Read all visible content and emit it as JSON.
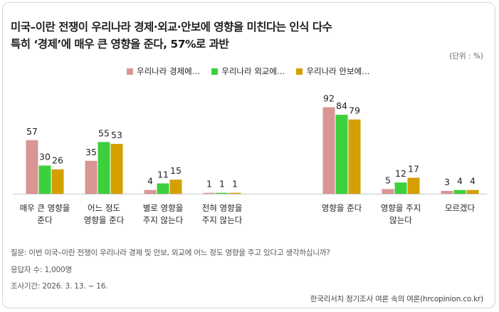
{
  "title_line1": "미국–이란 전쟁이 우리나라 경제·외교·안보에 영향을 미친다는 인식 다수",
  "title_line2": "특히 ‘경제’에 매우 큰 영향을 준다, 57%로 과반",
  "unit": "(단위 : %)",
  "footer": {
    "question": "질문: 이번 미국–이란 전쟁이 우리나라 경제 및 안보, 외교에 어느 정도 영향을 주고 있다고 생각하십니까?",
    "respondents": "응답자 수: 1,000명",
    "period": "조사기간: 2026. 3. 13. ~ 16.",
    "source": "한국리서치 정기조사 여론 속의 여론(hrcopinion.co.kr)"
  },
  "chart_data": {
    "type": "bar",
    "title": "미국–이란 전쟁이 우리나라 경제·외교·안보에 영향을 미친다는 인식 다수",
    "ylabel": "%",
    "ylim": [
      0,
      100
    ],
    "grid": false,
    "legend_position": "top",
    "categories": [
      "매우 큰 영향을\n준다",
      "어느 정도\n영향을 준다",
      "별로 영향을\n주지 않는다",
      "전혀 영향을\n주지 않는다",
      "영향을 준다",
      "영향을 주지\n않는다",
      "모르겠다"
    ],
    "series": [
      {
        "name": "우리나라 경제에…",
        "color": "#d99594",
        "values": [
          57,
          35,
          4,
          1,
          92,
          5,
          3
        ]
      },
      {
        "name": "우리나라 외교에…",
        "color": "#3dd03d",
        "values": [
          30,
          55,
          11,
          1,
          84,
          12,
          4
        ]
      },
      {
        "name": "우리나라 안보에…",
        "color": "#d4a000",
        "values": [
          26,
          53,
          15,
          1,
          79,
          17,
          4
        ]
      }
    ]
  }
}
